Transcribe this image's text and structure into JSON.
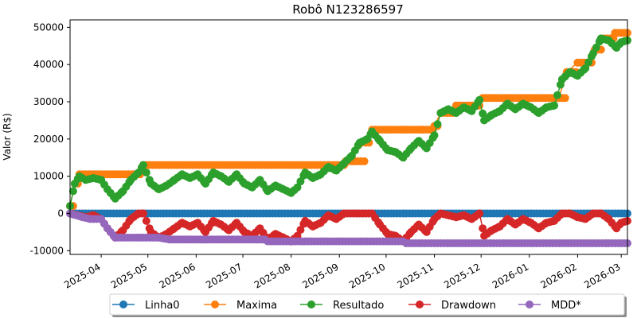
{
  "chart_data": {
    "type": "line",
    "title": "Robô N123286597",
    "xlabel": "",
    "ylabel": "Valor (R$)",
    "ylim": [
      -11000,
      52000
    ],
    "yticks": [
      -10000,
      0,
      10000,
      20000,
      30000,
      40000,
      50000
    ],
    "xlim": [
      "2025-03-12",
      "2026-03-05"
    ],
    "xticks": [
      "2025-04",
      "2025-05",
      "2025-06",
      "2025-07",
      "2025-08",
      "2025-09",
      "2025-10",
      "2025-11",
      "2025-12",
      "2026-01",
      "2026-02",
      "2026-03"
    ],
    "grid": false,
    "legend_position": "bottom-center",
    "series": [
      {
        "name": "Linha0",
        "color": "#1f77b4",
        "points": [
          [
            "2025-03-12",
            0
          ],
          [
            "2026-03-05",
            0
          ]
        ]
      },
      {
        "name": "Maxima",
        "color": "#ff7f0e",
        "points": [
          [
            "2025-03-12",
            2000
          ],
          [
            "2025-03-15",
            8000
          ],
          [
            "2025-03-18",
            10500
          ],
          [
            "2025-04-22",
            10500
          ],
          [
            "2025-04-28",
            13000
          ],
          [
            "2025-08-25",
            13000
          ],
          [
            "2025-09-05",
            14000
          ],
          [
            "2025-09-18",
            19000
          ],
          [
            "2025-09-22",
            22500
          ],
          [
            "2025-10-25",
            22500
          ],
          [
            "2025-11-01",
            23500
          ],
          [
            "2025-11-05",
            27000
          ],
          [
            "2025-11-15",
            29000
          ],
          [
            "2025-11-28",
            29000
          ],
          [
            "2025-12-02",
            31000
          ],
          [
            "2026-01-20",
            31000
          ],
          [
            "2026-01-25",
            38000
          ],
          [
            "2026-02-01",
            40500
          ],
          [
            "2026-02-08",
            40500
          ],
          [
            "2026-02-12",
            44000
          ],
          [
            "2026-02-18",
            47000
          ],
          [
            "2026-02-25",
            48500
          ],
          [
            "2026-03-05",
            48500
          ]
        ]
      },
      {
        "name": "Resultado",
        "color": "#2ca02c",
        "points": [
          [
            "2025-03-12",
            2000
          ],
          [
            "2025-03-15",
            8000
          ],
          [
            "2025-03-18",
            10000
          ],
          [
            "2025-03-22",
            9000
          ],
          [
            "2025-03-27",
            9500
          ],
          [
            "2025-04-01",
            9000
          ],
          [
            "2025-04-05",
            6500
          ],
          [
            "2025-04-10",
            4000
          ],
          [
            "2025-04-15",
            6000
          ],
          [
            "2025-04-20",
            9000
          ],
          [
            "2025-04-25",
            11000
          ],
          [
            "2025-04-28",
            13000
          ],
          [
            "2025-05-03",
            8000
          ],
          [
            "2025-05-08",
            6500
          ],
          [
            "2025-05-13",
            7500
          ],
          [
            "2025-05-18",
            9000
          ],
          [
            "2025-05-23",
            10500
          ],
          [
            "2025-05-28",
            9500
          ],
          [
            "2025-06-02",
            10500
          ],
          [
            "2025-06-07",
            8000
          ],
          [
            "2025-06-12",
            11000
          ],
          [
            "2025-06-17",
            10000
          ],
          [
            "2025-06-22",
            8500
          ],
          [
            "2025-06-27",
            10500
          ],
          [
            "2025-07-02",
            8000
          ],
          [
            "2025-07-07",
            7000
          ],
          [
            "2025-07-12",
            9000
          ],
          [
            "2025-07-17",
            6000
          ],
          [
            "2025-07-22",
            7500
          ],
          [
            "2025-07-27",
            6500
          ],
          [
            "2025-08-01",
            5500
          ],
          [
            "2025-08-05",
            7000
          ],
          [
            "2025-08-10",
            11000
          ],
          [
            "2025-08-15",
            9500
          ],
          [
            "2025-08-20",
            10500
          ],
          [
            "2025-08-25",
            12500
          ],
          [
            "2025-08-30",
            11500
          ],
          [
            "2025-09-04",
            13500
          ],
          [
            "2025-09-09",
            15500
          ],
          [
            "2025-09-14",
            19000
          ],
          [
            "2025-09-19",
            20000
          ],
          [
            "2025-09-22",
            22000
          ],
          [
            "2025-09-27",
            19500
          ],
          [
            "2025-10-02",
            17000
          ],
          [
            "2025-10-07",
            16500
          ],
          [
            "2025-10-12",
            15000
          ],
          [
            "2025-10-17",
            17500
          ],
          [
            "2025-10-22",
            19500
          ],
          [
            "2025-10-27",
            17500
          ],
          [
            "2025-11-01",
            21000
          ],
          [
            "2025-11-05",
            27000
          ],
          [
            "2025-11-10",
            28000
          ],
          [
            "2025-11-15",
            27000
          ],
          [
            "2025-11-20",
            28500
          ],
          [
            "2025-11-25",
            27500
          ],
          [
            "2025-11-30",
            30500
          ],
          [
            "2025-12-03",
            25000
          ],
          [
            "2025-12-08",
            26500
          ],
          [
            "2025-12-13",
            27500
          ],
          [
            "2025-12-18",
            29500
          ],
          [
            "2025-12-23",
            28000
          ],
          [
            "2025-12-28",
            29500
          ],
          [
            "2026-01-02",
            28500
          ],
          [
            "2026-01-07",
            27000
          ],
          [
            "2026-01-12",
            28500
          ],
          [
            "2026-01-17",
            29000
          ],
          [
            "2026-01-22",
            36000
          ],
          [
            "2026-01-27",
            38000
          ],
          [
            "2026-02-01",
            37000
          ],
          [
            "2026-02-06",
            39000
          ],
          [
            "2026-02-11",
            43000
          ],
          [
            "2026-02-16",
            47000
          ],
          [
            "2026-02-21",
            46500
          ],
          [
            "2026-02-26",
            44500
          ],
          [
            "2026-03-01",
            46000
          ],
          [
            "2026-03-05",
            46500
          ]
        ]
      },
      {
        "name": "Drawdown",
        "color": "#d62728",
        "points": [
          [
            "2025-03-12",
            0
          ],
          [
            "2025-03-22",
            -1000
          ],
          [
            "2025-03-27",
            -500
          ],
          [
            "2025-04-01",
            -1500
          ],
          [
            "2025-04-05",
            -4000
          ],
          [
            "2025-04-10",
            -6500
          ],
          [
            "2025-04-15",
            -4500
          ],
          [
            "2025-04-20",
            -1500
          ],
          [
            "2025-04-25",
            0
          ],
          [
            "2025-04-28",
            0
          ],
          [
            "2025-05-03",
            -5000
          ],
          [
            "2025-05-08",
            -6500
          ],
          [
            "2025-05-13",
            -5500
          ],
          [
            "2025-05-18",
            -4000
          ],
          [
            "2025-05-23",
            -2500
          ],
          [
            "2025-05-28",
            -3500
          ],
          [
            "2025-06-02",
            -2500
          ],
          [
            "2025-06-07",
            -5000
          ],
          [
            "2025-06-12",
            -2000
          ],
          [
            "2025-06-17",
            -3000
          ],
          [
            "2025-06-22",
            -4500
          ],
          [
            "2025-06-27",
            -2500
          ],
          [
            "2025-07-02",
            -5000
          ],
          [
            "2025-07-07",
            -6000
          ],
          [
            "2025-07-12",
            -4000
          ],
          [
            "2025-07-17",
            -7000
          ],
          [
            "2025-07-22",
            -5500
          ],
          [
            "2025-07-27",
            -6500
          ],
          [
            "2025-08-01",
            -7500
          ],
          [
            "2025-08-05",
            -6000
          ],
          [
            "2025-08-10",
            -2000
          ],
          [
            "2025-08-15",
            -3500
          ],
          [
            "2025-08-20",
            -2500
          ],
          [
            "2025-08-25",
            -500
          ],
          [
            "2025-08-30",
            -1500
          ],
          [
            "2025-09-04",
            0
          ],
          [
            "2025-09-14",
            0
          ],
          [
            "2025-09-22",
            0
          ],
          [
            "2025-09-27",
            -3000
          ],
          [
            "2025-10-02",
            -5500
          ],
          [
            "2025-10-07",
            -6000
          ],
          [
            "2025-10-12",
            -7500
          ],
          [
            "2025-10-17",
            -5000
          ],
          [
            "2025-10-22",
            -3000
          ],
          [
            "2025-10-27",
            -5000
          ],
          [
            "2025-11-01",
            -1500
          ],
          [
            "2025-11-05",
            0
          ],
          [
            "2025-11-15",
            -1000
          ],
          [
            "2025-11-20",
            -500
          ],
          [
            "2025-11-25",
            -1500
          ],
          [
            "2025-11-30",
            0
          ],
          [
            "2025-12-03",
            -6000
          ],
          [
            "2025-12-08",
            -4500
          ],
          [
            "2025-12-13",
            -3500
          ],
          [
            "2025-12-18",
            -1500
          ],
          [
            "2025-12-23",
            -3000
          ],
          [
            "2025-12-28",
            -1500
          ],
          [
            "2026-01-02",
            -2500
          ],
          [
            "2026-01-07",
            -4000
          ],
          [
            "2026-01-12",
            -2500
          ],
          [
            "2026-01-17",
            -2000
          ],
          [
            "2026-01-22",
            0
          ],
          [
            "2026-01-27",
            0
          ],
          [
            "2026-02-01",
            -1000
          ],
          [
            "2026-02-06",
            -1500
          ],
          [
            "2026-02-11",
            0
          ],
          [
            "2026-02-16",
            0
          ],
          [
            "2026-02-21",
            -1500
          ],
          [
            "2026-02-26",
            -4000
          ],
          [
            "2026-03-01",
            -2500
          ],
          [
            "2026-03-05",
            -2000
          ]
        ]
      },
      {
        "name": "MDD*",
        "color": "#9467bd",
        "points": [
          [
            "2025-03-12",
            0
          ],
          [
            "2025-03-20",
            -1000
          ],
          [
            "2025-03-25",
            -1500
          ],
          [
            "2025-04-01",
            -1500
          ],
          [
            "2025-04-05",
            -4000
          ],
          [
            "2025-04-10",
            -6500
          ],
          [
            "2025-05-08",
            -6500
          ],
          [
            "2025-05-15",
            -7000
          ],
          [
            "2025-07-15",
            -7000
          ],
          [
            "2025-07-17",
            -7500
          ],
          [
            "2025-10-12",
            -7500
          ],
          [
            "2025-10-14",
            -8000
          ],
          [
            "2026-03-05",
            -8000
          ]
        ]
      }
    ]
  }
}
